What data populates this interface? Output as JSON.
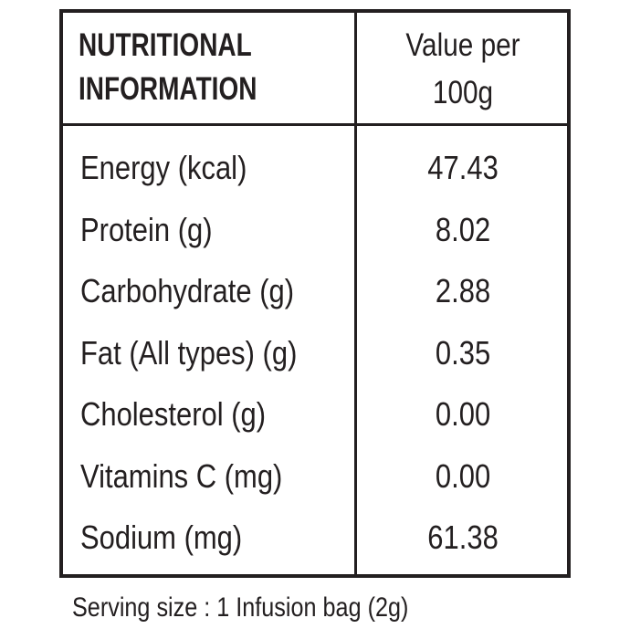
{
  "table": {
    "header": {
      "label_line1": "NUTRITIONAL",
      "label_line2": "INFORMATION",
      "value_line1": "Value per",
      "value_line2": "100g"
    },
    "rows": [
      {
        "name": "Energy (kcal)",
        "value": "47.43"
      },
      {
        "name": "Protein (g)",
        "value": "8.02"
      },
      {
        "name": "Carbohydrate (g)",
        "value": "2.88"
      },
      {
        "name": "Fat (All types) (g)",
        "value": "0.35"
      },
      {
        "name": "Cholesterol (g)",
        "value": "0.00"
      },
      {
        "name": "Vitamins C (mg)",
        "value": "0.00"
      },
      {
        "name": "Sodium (mg)",
        "value": "61.38"
      }
    ]
  },
  "footer": {
    "serving_size": "Serving size : 1 Infusion bag (2g)"
  }
}
